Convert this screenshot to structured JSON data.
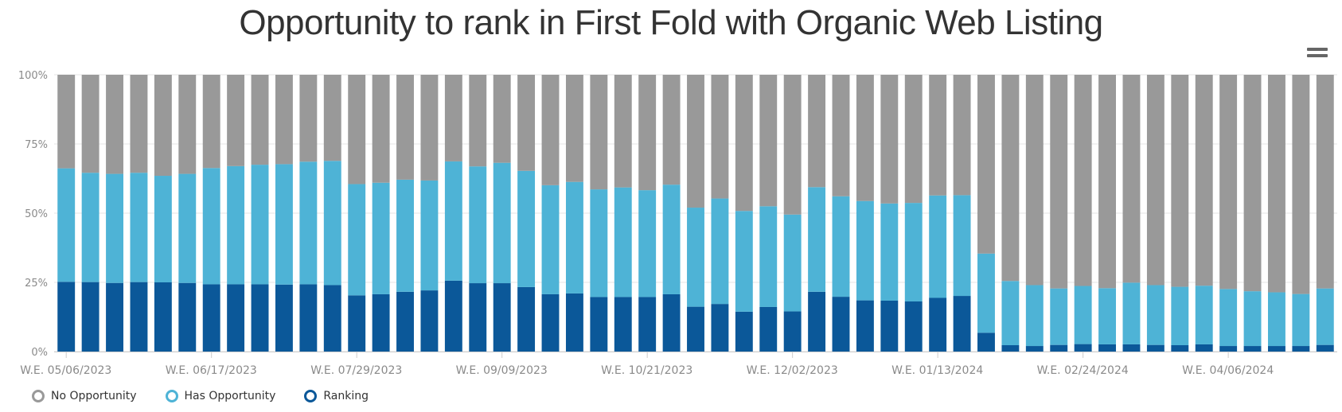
{
  "chart_data": {
    "type": "bar",
    "stacked": true,
    "title": "Opportunity to rank in First Fold with Organic Web Listing",
    "xlabel": "",
    "ylabel": "",
    "ylim": [
      0,
      100
    ],
    "y_ticks": [
      "0%",
      "25%",
      "50%",
      "75%",
      "100%"
    ],
    "x_tick_labels": [
      {
        "index": 0,
        "label": "W.E. 05/06/2023"
      },
      {
        "index": 6,
        "label": "W.E. 06/17/2023"
      },
      {
        "index": 12,
        "label": "W.E. 07/29/2023"
      },
      {
        "index": 18,
        "label": "W.E. 09/09/2023"
      },
      {
        "index": 24,
        "label": "W.E. 10/21/2023"
      },
      {
        "index": 30,
        "label": "W.E. 12/02/2023"
      },
      {
        "index": 36,
        "label": "W.E. 01/13/2024"
      },
      {
        "index": 42,
        "label": "W.E. 02/24/2024"
      },
      {
        "index": 48,
        "label": "W.E. 04/06/2024"
      }
    ],
    "grid": true,
    "legend_position": "bottom-left",
    "series": [
      {
        "name": "Ranking",
        "color": "#0b5899",
        "values": [
          25.2,
          25.1,
          24.8,
          25.1,
          25.0,
          24.8,
          24.3,
          24.3,
          24.3,
          24.2,
          24.3,
          24.0,
          20.3,
          20.7,
          21.6,
          22.1,
          25.6,
          24.7,
          24.7,
          23.3,
          20.7,
          21.0,
          19.7,
          19.7,
          19.7,
          20.7,
          16.2,
          17.2,
          14.4,
          16.1,
          14.5,
          21.6,
          19.8,
          18.5,
          18.4,
          18.1,
          19.4,
          20.1,
          6.8,
          2.3,
          2.0,
          2.4,
          2.7,
          2.6,
          2.6,
          2.4,
          2.3,
          2.6,
          2.0,
          2.0,
          2.0,
          2.0,
          2.4
        ]
      },
      {
        "name": "Has Opportunity",
        "color": "#4eb3d6",
        "values": [
          41.0,
          39.5,
          39.4,
          39.5,
          38.5,
          39.4,
          42.0,
          42.7,
          43.2,
          43.5,
          44.3,
          44.9,
          40.2,
          40.3,
          40.5,
          39.7,
          43.1,
          42.2,
          43.5,
          42.0,
          39.4,
          40.3,
          38.9,
          39.6,
          38.6,
          39.6,
          35.8,
          38.1,
          36.4,
          36.4,
          35.0,
          37.8,
          36.3,
          35.9,
          35.1,
          35.6,
          37.0,
          36.4,
          28.6,
          23.2,
          22.0,
          20.4,
          21.0,
          20.3,
          22.3,
          21.6,
          21.1,
          21.2,
          20.6,
          19.8,
          19.4,
          18.8,
          20.4
        ]
      },
      {
        "name": "No Opportunity",
        "color": "#999999",
        "values": [
          33.8,
          35.4,
          35.8,
          35.4,
          36.5,
          35.8,
          33.7,
          33.0,
          32.5,
          32.3,
          31.4,
          31.1,
          39.5,
          39.0,
          37.9,
          38.2,
          31.3,
          33.1,
          31.8,
          34.7,
          39.9,
          38.7,
          41.4,
          40.7,
          41.7,
          39.7,
          48.0,
          44.7,
          49.2,
          47.5,
          50.5,
          40.6,
          43.9,
          45.6,
          46.5,
          46.3,
          43.6,
          43.5,
          64.6,
          74.5,
          76.0,
          77.2,
          76.3,
          77.1,
          75.1,
          76.0,
          76.6,
          76.2,
          77.4,
          78.2,
          78.6,
          79.2,
          77.2
        ]
      }
    ]
  },
  "legend": {
    "items": [
      {
        "label": "No Opportunity",
        "color": "#999999"
      },
      {
        "label": "Has Opportunity",
        "color": "#4eb3d6"
      },
      {
        "label": "Ranking",
        "color": "#0b5899"
      }
    ]
  },
  "menu": {
    "icon": "hamburger-menu-icon"
  }
}
